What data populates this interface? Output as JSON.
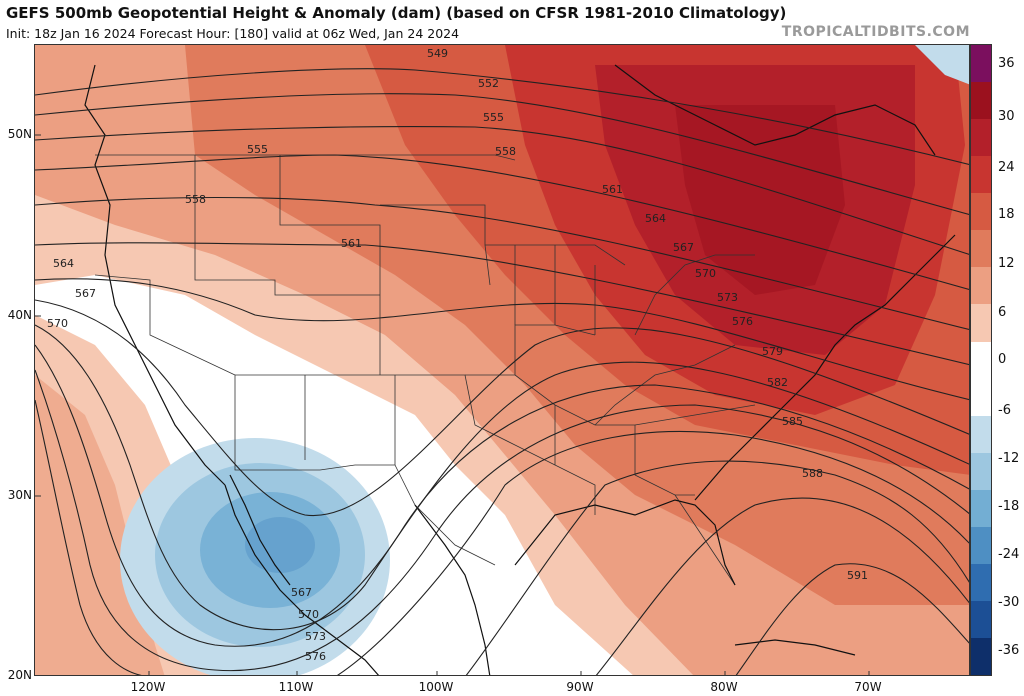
{
  "header": {
    "title": "GEFS 500mb Geopotential Height & Anomaly (dam) (based on CFSR 1981-2010 Climatology)",
    "subtitle": "Init: 18z Jan 16 2024   Forecast Hour: [180]   valid at 06z Wed, Jan 24 2024",
    "credit": "TROPICALTIDBITS.COM"
  },
  "map": {
    "latitude_labels": [
      "50N",
      "40N",
      "30N",
      "20N"
    ],
    "longitude_labels": [
      "120W",
      "110W",
      "100W",
      "90W",
      "80W",
      "70W"
    ],
    "contour_labels": [
      "549",
      "552",
      "555",
      "555",
      "558",
      "558",
      "561",
      "561",
      "564",
      "564",
      "567",
      "567",
      "570",
      "570",
      "573",
      "576",
      "579",
      "582",
      "585",
      "588",
      "591",
      "567",
      "570",
      "573",
      "576"
    ]
  },
  "colorbar": {
    "tick_labels": [
      "36",
      "30",
      "24",
      "18",
      "12",
      "6",
      "0",
      "-6",
      "-12",
      "-18",
      "-24",
      "-30",
      "-36"
    ],
    "colors": [
      "#7b0f5e",
      "#9b111e",
      "#b3202a",
      "#c83530",
      "#d65a42",
      "#e07b5c",
      "#ec9f82",
      "#f6c8b2",
      "#ffffff",
      "#ffffff",
      "#c2dceb",
      "#9dc7e0",
      "#73aed3",
      "#4e8fc3",
      "#2f6db0",
      "#1c4f95",
      "#0e2f6a"
    ]
  },
  "colors": {
    "positive_anomaly": "#c8252d",
    "negative_anomaly": "#7fb6da",
    "contour": "#222222",
    "border": "#333333"
  }
}
